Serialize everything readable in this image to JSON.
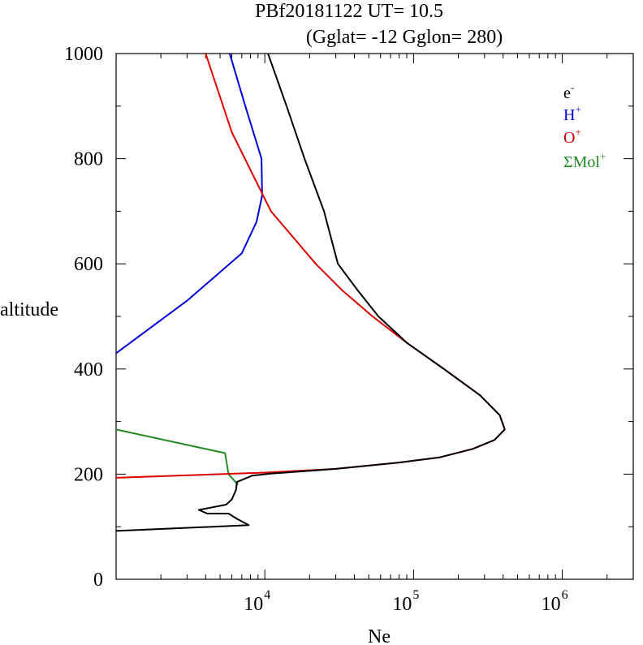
{
  "chart_data": {
    "type": "line",
    "title_line1": "PBf20181122   UT=  10.5",
    "title_line2": "(Gglat= -12   Gglon=  280)",
    "xlabel": "Ne",
    "ylabel": "altitude",
    "x_scale": "log",
    "xlim": [
      1000,
      3000000
    ],
    "ylim": [
      0,
      1000
    ],
    "y_ticks": [
      "0",
      "200",
      "400",
      "600",
      "800",
      "1000"
    ],
    "x_tick_labels": [
      {
        "base": "10",
        "exp": "4",
        "value": 10000
      },
      {
        "base": "10",
        "exp": "5",
        "value": 100000
      },
      {
        "base": "10",
        "exp": "6",
        "value": 1000000
      }
    ],
    "legend": {
      "placement": "top-right",
      "entries": [
        {
          "base": "e",
          "sup": "-",
          "color": "#000000"
        },
        {
          "base": "H",
          "sup": "+",
          "color": "#0000dd"
        },
        {
          "base": "O",
          "sup": "+",
          "color": "#dd0000"
        },
        {
          "base": "ΣMol",
          "sup": "+",
          "color": "#228b22"
        }
      ]
    },
    "series": [
      {
        "name": "e-",
        "color": "#000000",
        "points": [
          [
            1000,
            92
          ],
          [
            7800,
            103
          ],
          [
            6500,
            115
          ],
          [
            5700,
            125
          ],
          [
            4100,
            125
          ],
          [
            3600,
            132
          ],
          [
            5500,
            142
          ],
          [
            6000,
            152
          ],
          [
            6400,
            170
          ],
          [
            6500,
            185
          ],
          [
            8200,
            197
          ],
          [
            11000,
            201
          ],
          [
            30000,
            210
          ],
          [
            80000,
            222
          ],
          [
            150000,
            232
          ],
          [
            250000,
            248
          ],
          [
            350000,
            265
          ],
          [
            410000,
            285
          ],
          [
            380000,
            312
          ],
          [
            280000,
            350
          ],
          [
            160000,
            400
          ],
          [
            90000,
            450
          ],
          [
            58000,
            500
          ],
          [
            42000,
            550
          ],
          [
            31000,
            600
          ],
          [
            25000,
            700
          ],
          [
            18500,
            800
          ],
          [
            14000,
            900
          ],
          [
            10500,
            1000
          ]
        ]
      },
      {
        "name": "H+",
        "color": "#0000dd",
        "points": [
          [
            1000,
            430
          ],
          [
            3000,
            530
          ],
          [
            7000,
            620
          ],
          [
            8800,
            680
          ],
          [
            9600,
            730
          ],
          [
            9500,
            800
          ],
          [
            7400,
            900
          ],
          [
            5800,
            1000
          ]
        ]
      },
      {
        "name": "O+",
        "color": "#dd0000",
        "points": [
          [
            1000,
            193
          ],
          [
            10000,
            203
          ],
          [
            30000,
            210
          ],
          [
            80000,
            222
          ],
          [
            150000,
            232
          ],
          [
            250000,
            248
          ],
          [
            350000,
            265
          ],
          [
            410000,
            285
          ],
          [
            380000,
            312
          ],
          [
            280000,
            350
          ],
          [
            160000,
            400
          ],
          [
            90000,
            450
          ],
          [
            53000,
            500
          ],
          [
            33000,
            550
          ],
          [
            22000,
            600
          ],
          [
            11000,
            700
          ],
          [
            6000,
            850
          ],
          [
            4000,
            1000
          ]
        ]
      },
      {
        "name": "ΣMol+",
        "color": "#228b22",
        "points": [
          [
            1000,
            285
          ],
          [
            5400,
            240
          ],
          [
            5700,
            200
          ],
          [
            6600,
            180
          ]
        ]
      }
    ]
  }
}
